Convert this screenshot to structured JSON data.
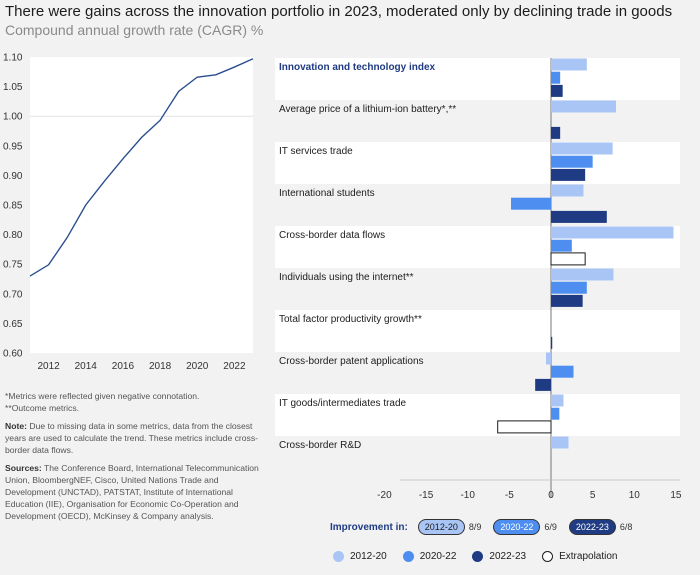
{
  "title": "There were gains across the innovation portfolio in 2023, moderated only by declining trade in goods",
  "subtitle": "Compound annual growth rate (CAGR) %",
  "colors": {
    "s1": "#a9c5f5",
    "s2": "#4d8ef0",
    "s3": "#1f3b83",
    "line": "#2a4f8f",
    "bold_label": "#1f3b83",
    "band": "#ffffff"
  },
  "chart_data": [
    {
      "type": "line",
      "x": [
        2011,
        2012,
        2013,
        2014,
        2015,
        2016,
        2017,
        2018,
        2019,
        2020,
        2021,
        2022,
        2023
      ],
      "y": [
        0.73,
        0.749,
        0.795,
        0.85,
        0.89,
        0.928,
        0.964,
        0.993,
        1.042,
        1.066,
        1.07,
        1.083,
        1.097
      ],
      "xticks": [
        "2012",
        "2014",
        "2016",
        "2018",
        "2020",
        "2022"
      ],
      "yticks": [
        "0.60",
        "0.65",
        "0.70",
        "0.75",
        "0.80",
        "0.85",
        "0.90",
        "0.95",
        "1.00",
        "1.05",
        "1.10"
      ],
      "xlim": [
        2011,
        2023
      ],
      "ylim": [
        0.6,
        1.1
      ]
    },
    {
      "type": "bar",
      "orientation": "horizontal",
      "categories": [
        "Innovation and technology index",
        "Average price of a lithium-ion battery*,**",
        "IT services trade",
        "International students",
        "Cross-border data flows",
        "Individuals using the internet**",
        "Total factor productivity growth**",
        "Cross-border patent applications",
        "IT goods/intermediates trade",
        "Cross-border R&D"
      ],
      "series": [
        {
          "name": "2012-20",
          "values": [
            4.3,
            7.8,
            7.4,
            3.9,
            14.7,
            7.5,
            null,
            -0.6,
            1.5,
            2.1
          ]
        },
        {
          "name": "2020-22",
          "values": [
            1.1,
            null,
            5.0,
            -4.8,
            2.5,
            4.3,
            null,
            2.7,
            1.0,
            null
          ]
        },
        {
          "name": "2022-23",
          "values": [
            1.4,
            1.1,
            4.1,
            6.7,
            4.1,
            3.8,
            0.15,
            -1.9,
            -6.4,
            null
          ],
          "extrapolated": [
            false,
            false,
            false,
            false,
            true,
            false,
            false,
            false,
            true,
            false
          ]
        }
      ],
      "xticks": [
        "-20",
        "-15",
        "-10",
        "-5",
        "0",
        "5",
        "10",
        "15"
      ],
      "xlim": [
        -19,
        15
      ]
    }
  ],
  "improvement": {
    "label": "Improvement in:",
    "items": [
      {
        "label": "2012-20",
        "score": "8/9"
      },
      {
        "label": "2020-22",
        "score": "6/9"
      },
      {
        "label": "2022-23",
        "score": "6/8"
      }
    ]
  },
  "legend": [
    "2012-20",
    "2020-22",
    "2022-23",
    "Extrapolation"
  ],
  "notes": {
    "n1": "*Metrics were reflected given negative connotation.",
    "n2": "**Outcome metrics.",
    "note_label": "Note:",
    "note_text": " Due to missing data in some metrics, data from the closest years are used to calculate the trend. These metrics include cross-border data flows.",
    "sources_label": "Sources:",
    "sources_text": " The Conference Board, International Telecommunication Union, BloombergNEF, Cisco, United Nations Trade and Development (UNCTAD), PATSTAT, Institute of International Education (IIE), Organisation for Economic Co-Operation and Development (OECD), McKinsey & Company analysis."
  }
}
